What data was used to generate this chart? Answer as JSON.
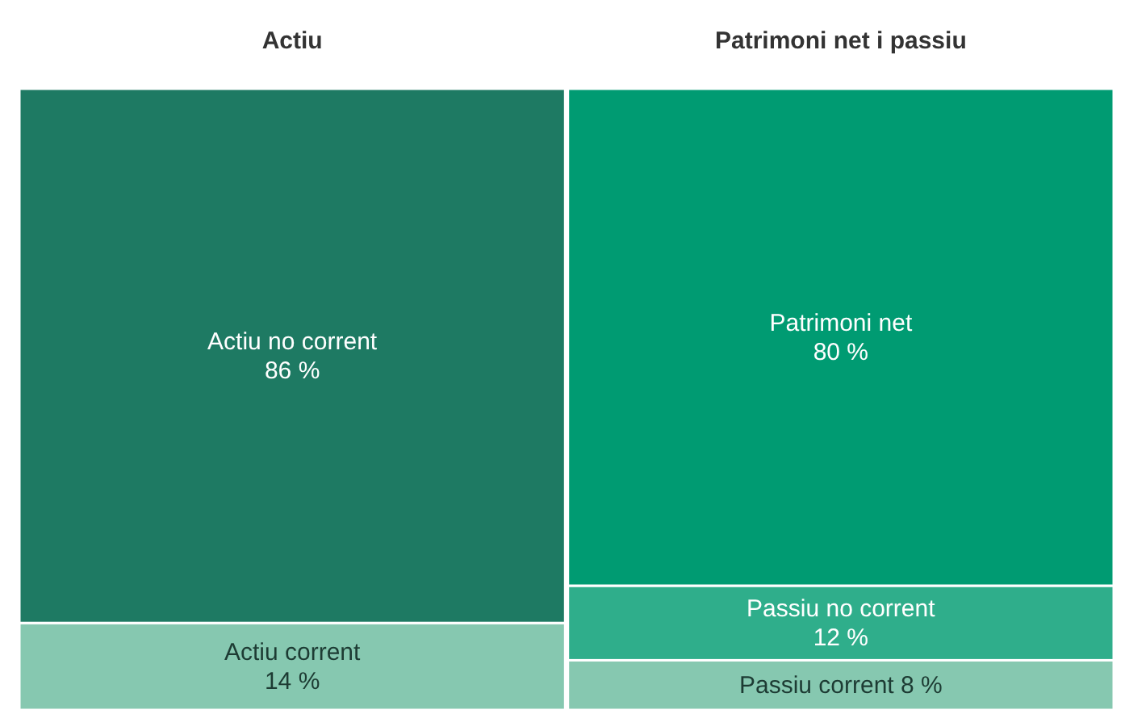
{
  "chart_data": {
    "type": "bar",
    "stacked": true,
    "categories": [
      "Actiu",
      "Patrimoni net i passiu"
    ],
    "series": [
      {
        "name": "Actiu corrent",
        "color": "#86c8b0",
        "values": [
          14,
          null
        ],
        "value_labels": [
          "14 %",
          null
        ]
      },
      {
        "name": "Actiu no corrent",
        "color": "#1e7a63",
        "values": [
          86,
          null
        ],
        "value_labels": [
          "86 %",
          null
        ]
      },
      {
        "name": "Passiu corrent",
        "color": "#86c8b0",
        "values": [
          null,
          8
        ],
        "value_labels": [
          null,
          "8 %"
        ]
      },
      {
        "name": "Passiu no corrent",
        "color": "#2fae8b",
        "values": [
          null,
          12
        ],
        "value_labels": [
          null,
          "12 %"
        ]
      },
      {
        "name": "Patrimoni net",
        "color": "#009b72",
        "values": [
          null,
          80
        ],
        "value_labels": [
          null,
          "80 %"
        ]
      }
    ]
  }
}
